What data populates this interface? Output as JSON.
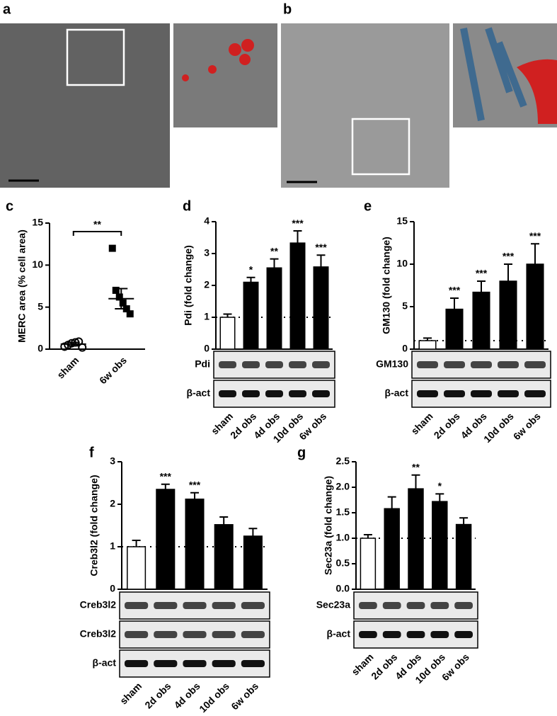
{
  "panel_labels": [
    "a",
    "b"
  ],
  "chart_data": [
    {
      "type": "dotplot",
      "panel": "c",
      "ylabel": "MERC area (% cell area)",
      "categories": [
        "sham",
        "6w obs"
      ],
      "points": [
        [
          0.3,
          0.5,
          0.7,
          0.8,
          0.9,
          0.2
        ],
        [
          12,
          7,
          6.2,
          5.5,
          4.8,
          4.2
        ]
      ],
      "means": [
        0.6,
        6
      ],
      "errors": [
        0.2,
        1.2
      ],
      "annotation": "**",
      "ylim": [
        0,
        15
      ],
      "yticks": [
        0,
        5,
        10,
        15
      ]
    },
    {
      "type": "bar",
      "panel": "d",
      "ylabel": "Pdi (fold change)",
      "categories": [
        "sham",
        "2d obs",
        "4d obs",
        "10d obs",
        "6w obs"
      ],
      "values": [
        1,
        2.1,
        2.55,
        3.33,
        2.58
      ],
      "errors": [
        0.1,
        0.15,
        0.28,
        0.38,
        0.37
      ],
      "significance": [
        null,
        "*",
        "**",
        "***",
        "***"
      ],
      "colors": [
        "#ffffff",
        "#000000",
        "#000000",
        "#000000",
        "#000000"
      ],
      "refline": 1,
      "blots": [
        "Pdi",
        "β-act"
      ],
      "ylim": [
        0,
        4
      ],
      "yticks": [
        0,
        1,
        2,
        3,
        4
      ]
    },
    {
      "type": "bar",
      "panel": "e",
      "ylabel": "GM130 (fold change)",
      "categories": [
        "sham",
        "2d obs",
        "4d obs",
        "10d obs",
        "6w obs"
      ],
      "values": [
        1,
        4.7,
        6.7,
        8,
        10
      ],
      "errors": [
        0.3,
        1.3,
        1.3,
        2,
        2.4
      ],
      "significance": [
        null,
        "***",
        "***",
        "***",
        "***"
      ],
      "colors": [
        "#ffffff",
        "#000000",
        "#000000",
        "#000000",
        "#000000"
      ],
      "refline": 1,
      "blots": [
        "GM130",
        "β-act"
      ],
      "ylim": [
        0,
        15
      ],
      "yticks": [
        0,
        5,
        10,
        15
      ]
    },
    {
      "type": "bar",
      "panel": "f",
      "ylabel": "Creb3l2 (fold change)",
      "categories": [
        "sham",
        "2d obs",
        "4d obs",
        "10d obs",
        "6w obs"
      ],
      "values": [
        1,
        2.35,
        2.12,
        1.52,
        1.25
      ],
      "errors": [
        0.15,
        0.12,
        0.15,
        0.18,
        0.18
      ],
      "significance": [
        null,
        "***",
        "***",
        null,
        null
      ],
      "colors": [
        "#ffffff",
        "#000000",
        "#000000",
        "#000000",
        "#000000"
      ],
      "refline": 1,
      "blots": [
        "Creb3l2",
        "Creb3l2",
        "β-act"
      ],
      "ylim": [
        0,
        3
      ],
      "yticks": [
        0,
        1,
        2,
        3
      ]
    },
    {
      "type": "bar",
      "panel": "g",
      "ylabel": "Sec23a (fold change)",
      "categories": [
        "sham",
        "2d obs",
        "4d obs",
        "10d obs",
        "6w obs"
      ],
      "values": [
        1,
        1.58,
        1.97,
        1.72,
        1.27
      ],
      "errors": [
        0.07,
        0.23,
        0.27,
        0.15,
        0.13
      ],
      "significance": [
        null,
        null,
        "**",
        "*",
        null
      ],
      "colors": [
        "#ffffff",
        "#000000",
        "#000000",
        "#000000",
        "#000000"
      ],
      "refline": 1,
      "blots": [
        "Sec23a",
        "β-act"
      ],
      "ylim": [
        0,
        2.5
      ],
      "yticks": [
        {
          "value": 0,
          "label": "0.0"
        },
        0.5,
        {
          "value": 1,
          "label": "1.0"
        },
        1.5,
        {
          "value": 2,
          "label": "2.0"
        },
        2.5
      ]
    }
  ]
}
